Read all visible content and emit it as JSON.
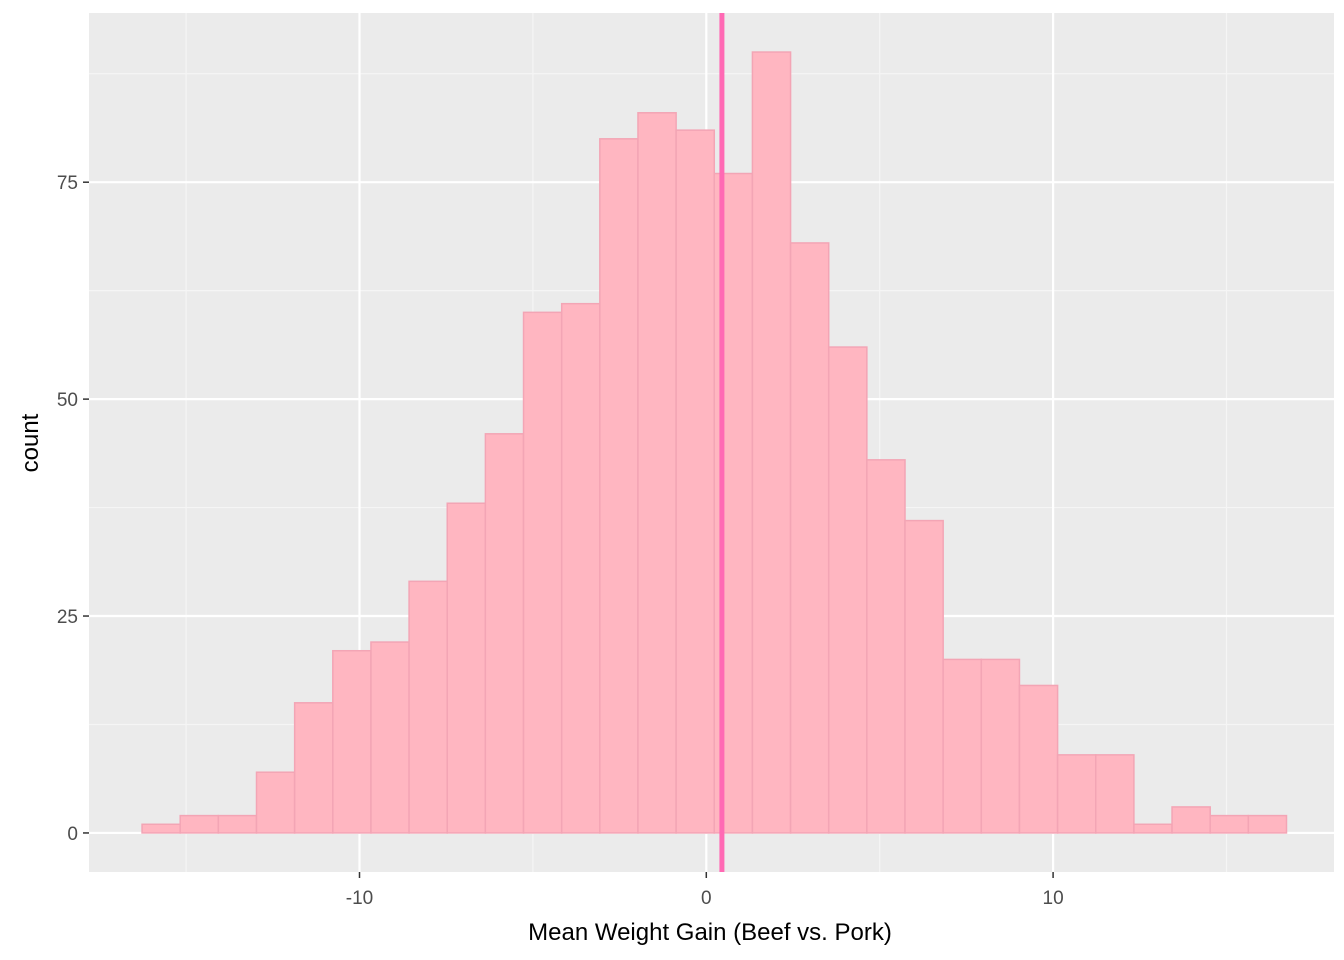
{
  "chart_data": {
    "type": "bar",
    "subtype": "histogram",
    "title": "",
    "xlabel": "Mean Weight Gain (Beef vs. Pork)",
    "ylabel": "count",
    "xlim": [
      -17.8,
      18.1
    ],
    "ylim": [
      -4.5,
      94.5
    ],
    "x_ticks": [
      -10,
      0,
      10
    ],
    "x_tick_labels": [
      "-10",
      "0",
      "10"
    ],
    "y_ticks": [
      0,
      25,
      50,
      75
    ],
    "y_tick_labels": [
      "0",
      "25",
      "50",
      "75"
    ],
    "bin_width": 1.1,
    "bin_start": -16.27,
    "counts": [
      1,
      2,
      2,
      7,
      15,
      21,
      22,
      29,
      38,
      46,
      60,
      61,
      80,
      83,
      81,
      76,
      90,
      68,
      56,
      43,
      36,
      20,
      20,
      17,
      9,
      9,
      1,
      3,
      2,
      2
    ],
    "vline": {
      "x": 0.45,
      "color": "#ff69b4"
    },
    "grid": true,
    "legend": "none",
    "colors": {
      "panel_background": "#ebebeb",
      "grid_major": "#ffffff",
      "grid_minor": "#f5f5f5",
      "bar_fill": "#ffb6c1",
      "bar_outline": "#f3a5b5",
      "tick_mark": "#333333"
    }
  }
}
